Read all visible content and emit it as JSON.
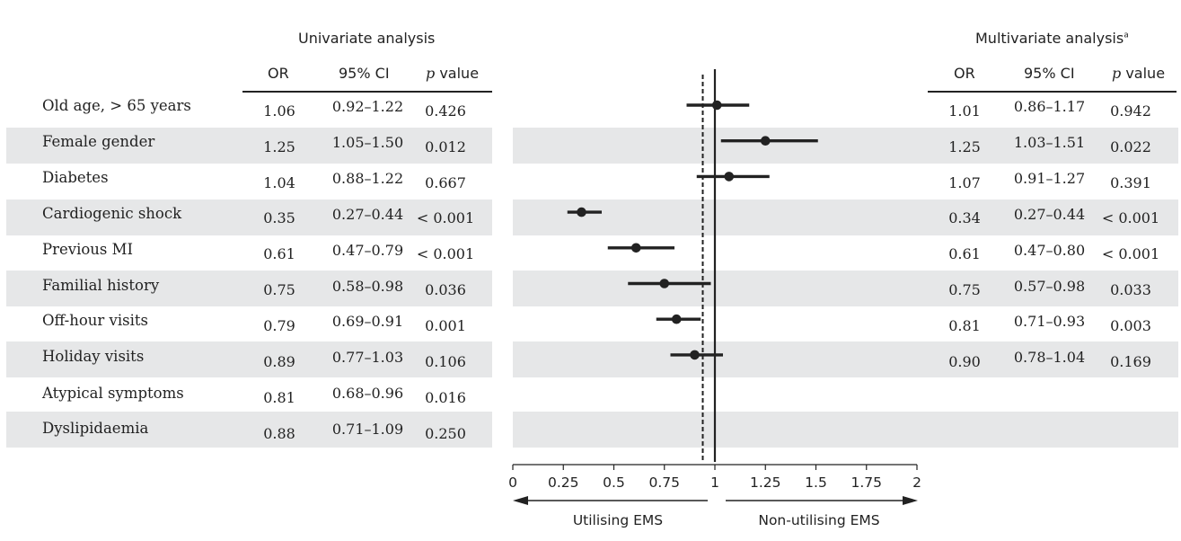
{
  "univariate_header": "Univariate analysis",
  "multivariate_header": "Multivariate analysis",
  "multivariate_header_sup": "a",
  "columns": {
    "or": "OR",
    "ci": "95% CI",
    "p_prefix": "p",
    "p_suffix": " value"
  },
  "rows": [
    {
      "label": "Old age, > 65 years",
      "uni": {
        "or": "1.06",
        "ci": "0.92–1.22",
        "p": "0.426"
      },
      "multi": {
        "or": "1.01",
        "ci": "0.86–1.17",
        "p": "0.942"
      }
    },
    {
      "label": "Female gender",
      "uni": {
        "or": "1.25",
        "ci": "1.05–1.50",
        "p": "0.012"
      },
      "multi": {
        "or": "1.25",
        "ci": "1.03–1.51",
        "p": "0.022"
      }
    },
    {
      "label": "Diabetes",
      "uni": {
        "or": "1.04",
        "ci": "0.88–1.22",
        "p": "0.667"
      },
      "multi": {
        "or": "1.07",
        "ci": "0.91–1.27",
        "p": "0.391"
      }
    },
    {
      "label": "Cardiogenic shock",
      "uni": {
        "or": "0.35",
        "ci": "0.27–0.44",
        "p": "< 0.001"
      },
      "multi": {
        "or": "0.34",
        "ci": "0.27–0.44",
        "p": "< 0.001"
      }
    },
    {
      "label": "Previous MI",
      "uni": {
        "or": "0.61",
        "ci": "0.47–0.79",
        "p": "< 0.001"
      },
      "multi": {
        "or": "0.61",
        "ci": "0.47–0.80",
        "p": "< 0.001"
      }
    },
    {
      "label": "Familial history",
      "uni": {
        "or": "0.75",
        "ci": "0.58–0.98",
        "p": "0.036"
      },
      "multi": {
        "or": "0.75",
        "ci": "0.57–0.98",
        "p": "0.033"
      }
    },
    {
      "label": "Off-hour visits",
      "uni": {
        "or": "0.79",
        "ci": "0.69–0.91",
        "p": "0.001"
      },
      "multi": {
        "or": "0.81",
        "ci": "0.71–0.93",
        "p": "0.003"
      }
    },
    {
      "label": "Holiday visits",
      "uni": {
        "or": "0.89",
        "ci": "0.77–1.03",
        "p": "0.106"
      },
      "multi": {
        "or": "0.90",
        "ci": "0.78–1.04",
        "p": "0.169"
      }
    },
    {
      "label": "Atypical symptoms",
      "uni": {
        "or": "0.81",
        "ci": "0.68–0.96",
        "p": "0.016"
      },
      "multi": null
    },
    {
      "label": "Dyslipidaemia",
      "uni": {
        "or": "0.88",
        "ci": "0.71–1.09",
        "p": "0.250"
      },
      "multi": null
    }
  ],
  "chart_data": {
    "type": "scatter",
    "subtype": "forest-plot",
    "x": [
      1.01,
      1.25,
      1.07,
      0.34,
      0.61,
      0.75,
      0.81,
      0.9
    ],
    "ci_low": [
      0.86,
      1.03,
      0.91,
      0.27,
      0.47,
      0.57,
      0.71,
      0.78
    ],
    "ci_high": [
      1.17,
      1.51,
      1.27,
      0.44,
      0.8,
      0.98,
      0.93,
      1.04
    ],
    "xlim": [
      0,
      2
    ],
    "xticks": [
      0,
      0.25,
      0.5,
      0.75,
      1,
      1.25,
      1.5,
      1.75,
      2
    ],
    "xtick_labels": [
      "0",
      "0.25",
      "0.5",
      "0.75",
      "1",
      "1.25",
      "1.5",
      "1.75",
      "2"
    ],
    "reference_line": 1,
    "dashed_line": 0.94,
    "left_arrow_label": "Utilising EMS",
    "right_arrow_label": "Non-utilising EMS",
    "colors": {
      "band": "#e6e7e8",
      "ink": "#222222"
    }
  }
}
